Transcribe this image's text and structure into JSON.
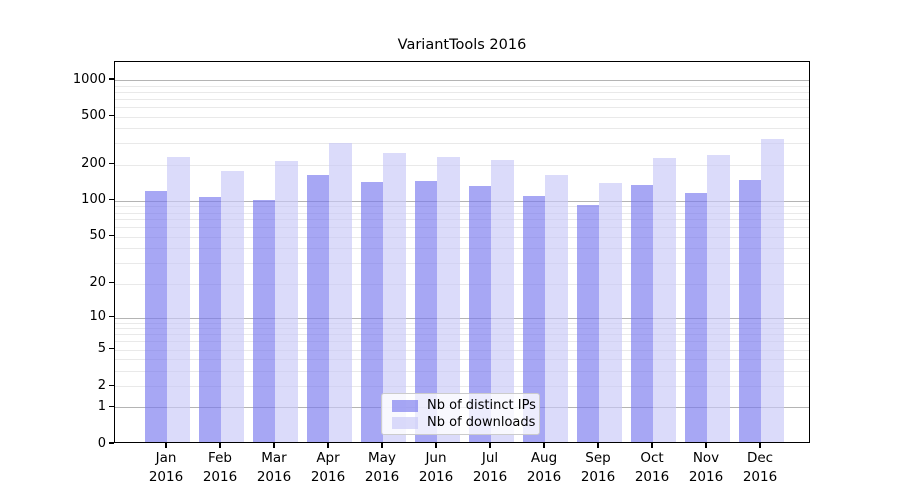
{
  "chart_data": {
    "type": "bar",
    "title": "VariantTools 2016",
    "categories": [
      "Jan",
      "Feb",
      "Mar",
      "Apr",
      "May",
      "Jun",
      "Jul",
      "Aug",
      "Sep",
      "Oct",
      "Nov",
      "Dec"
    ],
    "x_tick_second_line": "2016",
    "series": [
      {
        "name": "Nb of distinct IPs",
        "color_rgb": [
          120,
          120,
          238
        ],
        "alpha": 0.65,
        "values": [
          116,
          104,
          98,
          158,
          138,
          141,
          128,
          106,
          89,
          130,
          112,
          144
        ]
      },
      {
        "name": "Nb of downloads",
        "color_rgb": [
          200,
          200,
          248
        ],
        "alpha": 0.65,
        "values": [
          223,
          170,
          206,
          291,
          240,
          223,
          210,
          158,
          136,
          218,
          231,
          314
        ]
      }
    ],
    "yscale": "log1p",
    "ylim": [
      0,
      1410
    ],
    "yticks": [
      0,
      1,
      2,
      5,
      10,
      20,
      50,
      100,
      200,
      500,
      1000
    ],
    "ytick_labels": [
      "0",
      "1",
      "2",
      "5",
      "10",
      "20",
      "50",
      "100",
      "200",
      "500",
      "1000"
    ],
    "grid": {
      "major_at": [
        1,
        10,
        100,
        1000
      ],
      "minor_mantissas": [
        2,
        3,
        4,
        5,
        6,
        7,
        8,
        9
      ],
      "minor_decades": [
        1,
        10,
        100
      ],
      "major_color": "#b4b4b4",
      "minor_color": "#e9e9e9"
    },
    "legend": {
      "position": "lower-center"
    },
    "axis_color": "#000000",
    "xlabel": "",
    "ylabel": ""
  }
}
